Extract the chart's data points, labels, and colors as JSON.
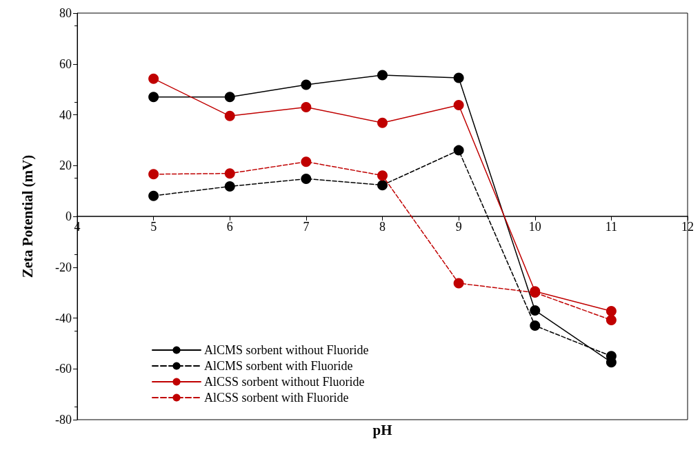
{
  "chart_data": {
    "type": "line",
    "xlabel": "pH",
    "ylabel": "Zeta Potential (mV)",
    "xlim": [
      4,
      12
    ],
    "xticks": [
      4,
      5,
      6,
      7,
      8,
      9,
      10,
      11,
      12
    ],
    "ylim": [
      -80,
      80
    ],
    "yticks": [
      -80,
      -60,
      -40,
      -20,
      0,
      20,
      40,
      60,
      80
    ],
    "grid": false,
    "legend": "bottom left",
    "marker": "circle",
    "series": [
      {
        "name": "AlCMS sorbent without Fluoride",
        "color": "#000000",
        "line_style": "solid",
        "x": [
          5,
          6,
          7,
          8,
          9,
          10,
          11
        ],
        "values": [
          47,
          47,
          51.8,
          55.6,
          54.5,
          -37,
          -57.4
        ]
      },
      {
        "name": "AlCMS sorbent with Fluoride",
        "color": "#000000",
        "line_style": "dashed",
        "x": [
          5,
          6,
          7,
          8,
          9,
          10,
          11
        ],
        "values": [
          8.1,
          11.8,
          14.8,
          12.3,
          26,
          -43,
          -55
        ]
      },
      {
        "name": "AlCSS sorbent without Fluoride",
        "color": "#c00000",
        "line_style": "solid",
        "x": [
          5,
          6,
          7,
          8,
          9,
          10,
          11
        ],
        "values": [
          54.2,
          39.5,
          43,
          36.8,
          43.8,
          -29.5,
          -37.3
        ]
      },
      {
        "name": "AlCSS sorbent with Fluoride",
        "color": "#c00000",
        "line_style": "dashed",
        "x": [
          5,
          6,
          7,
          8,
          9,
          10,
          11
        ],
        "values": [
          16.6,
          16.9,
          21.5,
          16.1,
          -26.3,
          -30,
          -40.8
        ]
      }
    ]
  }
}
